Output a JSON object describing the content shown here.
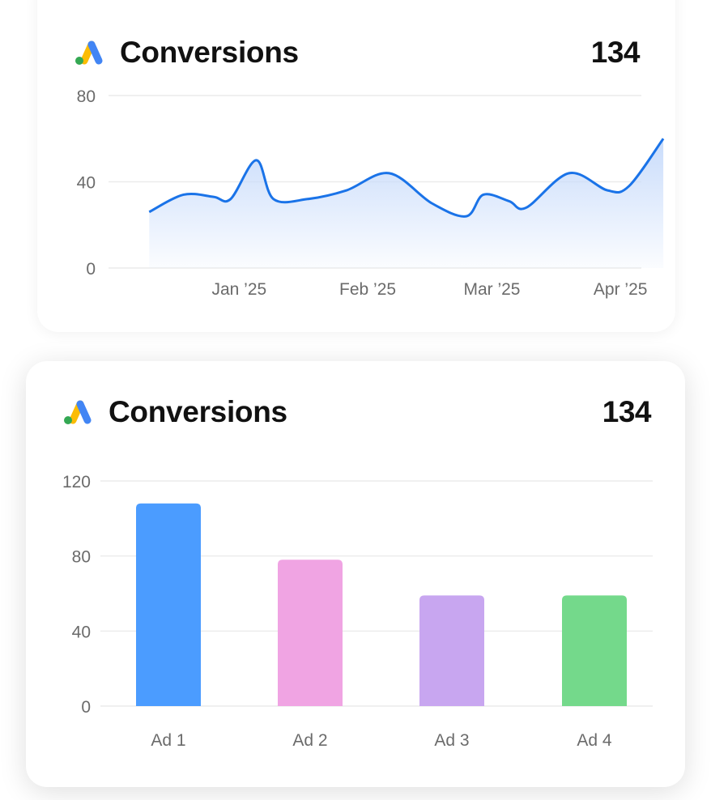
{
  "cards": [
    {
      "title": "Conversions",
      "total": "134",
      "icon": "google-ads-logo-icon"
    },
    {
      "title": "Conversions",
      "total": "134",
      "icon": "google-ads-logo-icon"
    }
  ],
  "colors": {
    "line": "#1a73e8",
    "area_top": "#c9dcfb",
    "ad1": "#4b9cff",
    "ad2": "#f0a4e3",
    "ad3": "#c8a6f0",
    "ad4": "#74d98b",
    "logo_blue": "#4285f4",
    "logo_yellow": "#fbbc04",
    "logo_green": "#34a853"
  },
  "chart_data": [
    {
      "type": "area",
      "title": "Conversions",
      "xlabel": "",
      "ylabel": "",
      "x_ticks": [
        "Jan ’25",
        "Feb ’25",
        "Mar ’25",
        "Apr ’25"
      ],
      "y_ticks": [
        0,
        40,
        80
      ],
      "ylim": [
        0,
        80
      ],
      "grid": true,
      "series": [
        {
          "x": [
            "2024-12-26",
            "2025-01-03",
            "2025-01-10",
            "2025-01-14",
            "2025-01-20",
            "2025-01-24",
            "2025-02-01",
            "2025-02-10",
            "2025-02-20",
            "2025-03-02",
            "2025-03-10",
            "2025-03-14",
            "2025-03-20",
            "2025-03-24",
            "2025-04-03",
            "2025-04-12",
            "2025-04-17",
            "2025-04-25"
          ],
          "values": [
            26,
            34,
            33,
            32,
            50,
            32,
            32,
            36,
            44,
            30,
            24,
            34,
            31,
            28,
            44,
            36,
            38,
            60
          ]
        }
      ]
    },
    {
      "type": "bar",
      "title": "Conversions",
      "xlabel": "",
      "ylabel": "",
      "categories": [
        "Ad 1",
        "Ad 2",
        "Ad 3",
        "Ad 4"
      ],
      "y_ticks": [
        0,
        40,
        80,
        120
      ],
      "ylim": [
        0,
        120
      ],
      "grid": true,
      "values": [
        108,
        78,
        59,
        59
      ]
    }
  ]
}
